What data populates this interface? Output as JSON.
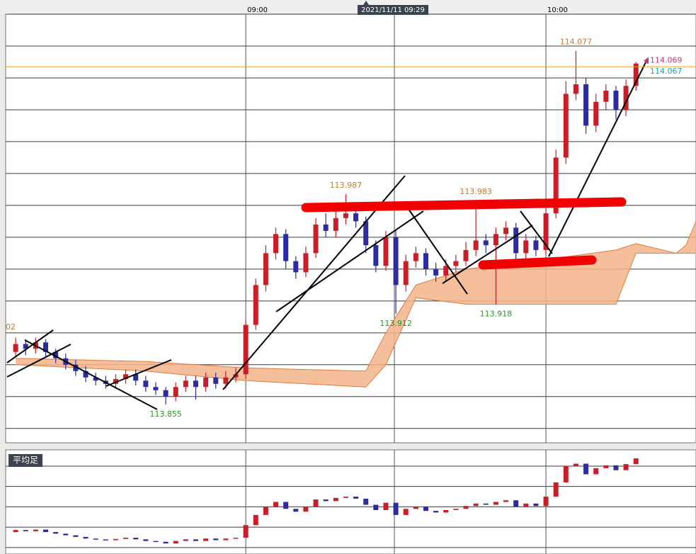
{
  "chart_data": [
    {
      "type": "candlestick",
      "x": [
        "08:14",
        "08:16",
        "08:18",
        "08:20",
        "08:22",
        "08:24",
        "08:26",
        "08:28",
        "08:30",
        "08:32",
        "08:34",
        "08:36",
        "08:38",
        "08:40",
        "08:42",
        "08:44",
        "08:46",
        "08:48",
        "08:50",
        "08:52",
        "08:54",
        "08:56",
        "08:58",
        "09:00",
        "09:02",
        "09:04",
        "09:06",
        "09:08",
        "09:10",
        "09:12",
        "09:14",
        "09:16",
        "09:18",
        "09:20",
        "09:22",
        "09:24",
        "09:26",
        "09:28",
        "09:30",
        "09:32",
        "09:34",
        "09:36",
        "09:38",
        "09:40",
        "09:42",
        "09:44",
        "09:46",
        "09:48",
        "09:50",
        "09:52",
        "09:54",
        "09:56",
        "09:58",
        "10:00",
        "10:02",
        "10:04",
        "10:06",
        "10:08",
        "10:10",
        "10:12",
        "10:14",
        "10:16",
        "10:18"
      ],
      "open": [
        113.888,
        113.893,
        113.89,
        113.894,
        113.888,
        113.884,
        113.88,
        113.876,
        113.872,
        113.87,
        113.868,
        113.871,
        113.874,
        113.87,
        113.866,
        113.864,
        113.86,
        113.866,
        113.87,
        113.866,
        113.872,
        113.868,
        113.872,
        113.874,
        113.905,
        113.93,
        113.95,
        113.962,
        113.945,
        113.938,
        113.95,
        113.968,
        113.964,
        113.972,
        113.975,
        113.97,
        113.955,
        113.942,
        113.96,
        113.93,
        113.945,
        113.95,
        113.94,
        113.936,
        113.942,
        113.945,
        113.952,
        113.958,
        113.955,
        113.962,
        113.966,
        113.95,
        113.958,
        113.952,
        113.975,
        114.01,
        114.05,
        114.056,
        114.03,
        114.045,
        114.052,
        114.04,
        114.055
      ],
      "high": [
        113.897,
        113.896,
        113.897,
        113.896,
        113.89,
        113.887,
        113.883,
        113.879,
        113.875,
        113.873,
        113.874,
        113.877,
        113.877,
        113.873,
        113.869,
        113.866,
        113.869,
        113.873,
        113.873,
        113.875,
        113.875,
        113.876,
        113.878,
        113.908,
        113.934,
        113.955,
        113.966,
        113.965,
        113.948,
        113.954,
        113.972,
        113.975,
        113.978,
        113.987,
        113.979,
        113.973,
        113.958,
        113.964,
        113.965,
        113.949,
        113.954,
        113.953,
        113.944,
        113.946,
        113.949,
        113.957,
        113.983,
        113.962,
        113.966,
        113.97,
        113.969,
        113.962,
        113.961,
        113.98,
        114.015,
        114.058,
        114.077,
        114.06,
        114.05,
        114.056,
        114.055,
        114.059,
        114.07
      ],
      "low": [
        113.885,
        113.886,
        113.887,
        113.885,
        113.881,
        113.877,
        113.873,
        113.869,
        113.867,
        113.865,
        113.865,
        113.868,
        113.867,
        113.863,
        113.861,
        113.855,
        113.857,
        113.863,
        113.858,
        113.863,
        113.865,
        113.865,
        113.869,
        113.871,
        113.902,
        113.926,
        113.946,
        113.94,
        113.934,
        113.935,
        113.947,
        113.96,
        113.96,
        113.968,
        113.966,
        113.95,
        113.938,
        113.939,
        113.912,
        113.926,
        113.941,
        113.936,
        113.932,
        113.932,
        113.938,
        113.942,
        113.948,
        113.95,
        113.918,
        113.958,
        113.946,
        113.946,
        113.948,
        113.949,
        113.972,
        114.006,
        114.046,
        114.025,
        114.026,
        114.04,
        114.034,
        114.036,
        114.052
      ],
      "close": [
        113.893,
        113.89,
        113.894,
        113.888,
        113.884,
        113.88,
        113.876,
        113.872,
        113.87,
        113.868,
        113.871,
        113.874,
        113.87,
        113.866,
        113.864,
        113.86,
        113.866,
        113.87,
        113.866,
        113.872,
        113.868,
        113.872,
        113.874,
        113.905,
        113.93,
        113.95,
        113.962,
        113.945,
        113.938,
        113.95,
        113.968,
        113.964,
        113.972,
        113.975,
        113.97,
        113.955,
        113.942,
        113.96,
        113.93,
        113.945,
        113.95,
        113.94,
        113.936,
        113.942,
        113.945,
        113.952,
        113.958,
        113.955,
        113.962,
        113.966,
        113.95,
        113.958,
        113.952,
        113.975,
        114.01,
        114.05,
        114.056,
        114.03,
        114.045,
        114.052,
        114.04,
        114.055,
        114.069
      ],
      "up_color": "#c81e28",
      "down_color": "#2c2ca0",
      "xlim": [
        "08:12",
        "10:30"
      ],
      "xticks": [
        "09:00",
        "10:00"
      ],
      "cursor_label": "2021/11/11 09:29",
      "ylim": [
        113.831,
        114.1
      ],
      "yticks": [
        114.1,
        114.08,
        114.06,
        114.04,
        114.02,
        114,
        113.98,
        113.96,
        113.94,
        113.92,
        113.9,
        113.88,
        113.86,
        113.84
      ],
      "grid": true,
      "annotations": [
        {
          "value": 113.987,
          "label": "113.987",
          "color": "#c8782a"
        },
        {
          "value": 113.983,
          "label": "113.983",
          "color": "#c8782a"
        },
        {
          "value": 114.077,
          "label": "114.077",
          "color": "#c8782a"
        },
        {
          "value": 113.912,
          "label": "113.912",
          "color": "#1e9a1e"
        },
        {
          "value": 113.918,
          "label": "113.918",
          "color": "#1e9a1e"
        },
        {
          "value": 113.855,
          "label": "113.855",
          "color": "#1e9a1e"
        }
      ],
      "edge_label": "02",
      "price_labels": [
        {
          "value": 114.069,
          "label": "114.069",
          "color": "#d0307a"
        },
        {
          "value": 114.067,
          "label": "114.067",
          "color": "#1aa0b0"
        }
      ],
      "cloud": {
        "x": [
          "08:14",
          "08:40",
          "09:00",
          "09:24",
          "09:28",
          "09:34",
          "09:44",
          "10:00",
          "10:14",
          "10:18",
          "10:26",
          "10:28",
          "10:34"
        ],
        "span_a": [
          113.884,
          113.882,
          113.878,
          113.876,
          113.9,
          113.93,
          113.94,
          113.946,
          113.952,
          113.956,
          113.95,
          113.955,
          114.0
        ],
        "span_b": [
          113.88,
          113.876,
          113.87,
          113.866,
          113.88,
          113.922,
          113.918,
          113.918,
          113.918,
          113.95,
          113.95,
          113.95,
          113.95
        ],
        "color": "#f5b48a",
        "line_color": "#e07a40"
      }
    },
    {
      "type": "candlestick",
      "title": "平均足",
      "open": [
        113.888,
        113.893,
        113.89,
        113.894,
        113.888,
        113.884,
        113.88,
        113.876,
        113.872,
        113.87,
        113.868,
        113.871,
        113.874,
        113.87,
        113.866,
        113.864,
        113.86,
        113.866,
        113.87,
        113.866,
        113.872,
        113.868,
        113.872,
        113.874,
        113.905,
        113.93,
        113.95,
        113.962,
        113.945,
        113.938,
        113.95,
        113.968,
        113.964,
        113.972,
        113.975,
        113.97,
        113.955,
        113.942,
        113.96,
        113.93,
        113.945,
        113.95,
        113.94,
        113.936,
        113.942,
        113.945,
        113.952,
        113.958,
        113.955,
        113.962,
        113.966,
        113.95,
        113.958,
        113.952,
        113.975,
        114.01,
        114.05,
        114.056,
        114.03,
        114.045,
        114.052,
        114.04,
        114.055
      ],
      "close": [
        113.893,
        113.89,
        113.894,
        113.888,
        113.884,
        113.88,
        113.876,
        113.872,
        113.87,
        113.868,
        113.871,
        113.874,
        113.87,
        113.866,
        113.864,
        113.86,
        113.866,
        113.87,
        113.866,
        113.872,
        113.868,
        113.872,
        113.874,
        113.905,
        113.93,
        113.95,
        113.962,
        113.945,
        113.938,
        113.95,
        113.968,
        113.964,
        113.972,
        113.975,
        113.97,
        113.955,
        113.942,
        113.96,
        113.93,
        113.945,
        113.95,
        113.94,
        113.936,
        113.942,
        113.945,
        113.952,
        113.958,
        113.955,
        113.962,
        113.966,
        113.95,
        113.958,
        113.952,
        113.975,
        114.01,
        114.05,
        114.056,
        114.03,
        114.045,
        114.052,
        114.04,
        114.055,
        114.069
      ],
      "up_color": "#c81e28",
      "down_color": "#2c2ca0",
      "ylim": [
        113.834,
        114.09
      ],
      "yticks": [
        114.05,
        114,
        113.95,
        113.9,
        113.85
      ]
    }
  ]
}
